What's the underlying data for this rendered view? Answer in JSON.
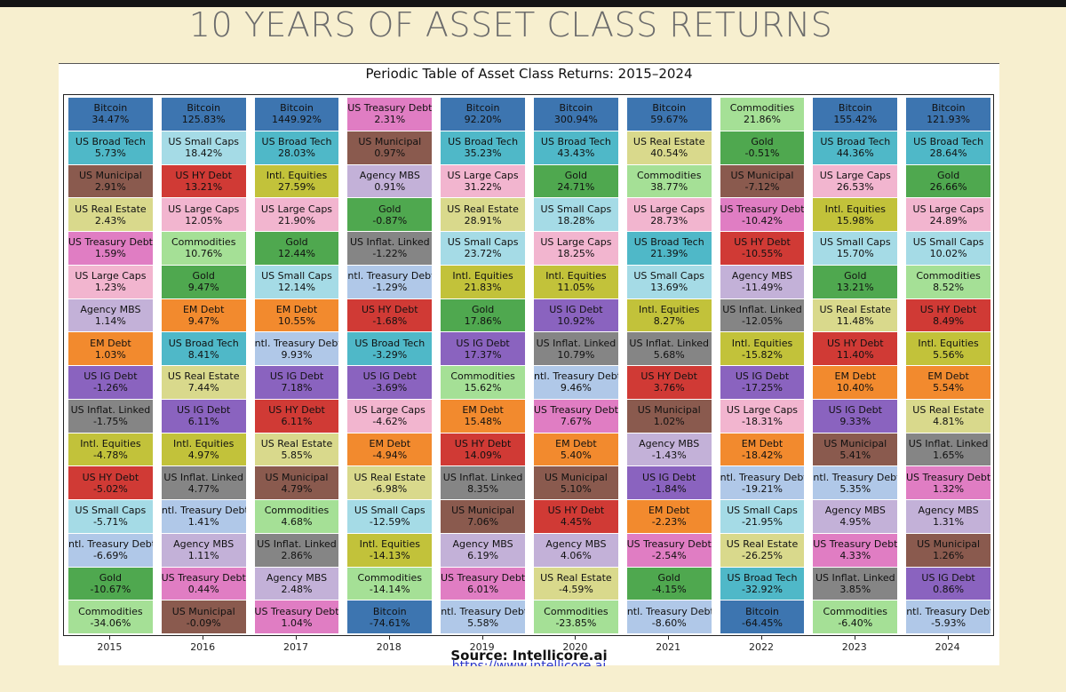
{
  "slide": {
    "title": "10 YEARS OF ASSET CLASS RETURNS",
    "source": "Source: Intellicore.ai",
    "source_url": "https://www.intellicore.ai"
  },
  "colors": {
    "Bitcoin": "#3d75b0",
    "US Broad Tech": "#4fb8c8",
    "US Municipal": "#8a5a4e",
    "US Real Estate": "#d9d98c",
    "US Treasury Debt": "#e07dc3",
    "US Large Caps": "#f2b5cf",
    "Agency MBS": "#c3b1d8",
    "EM Debt": "#f28a2e",
    "US IG Debt": "#8a63bf",
    "US Inflat. Linked": "#858585",
    "Intl. Equities": "#c2c23a",
    "US HY Debt": "#d03a35",
    "US Small Caps": "#a5dbe6",
    "Intl. Treasury Debt": "#b0c8e8",
    "Gold": "#4fa84f",
    "Commodities": "#a5e096"
  },
  "chart_data": {
    "type": "table",
    "title": "Periodic Table of Asset Class Returns: 2015–2024",
    "x_labels": [
      "2015",
      "2016",
      "2017",
      "2018",
      "2019",
      "2020",
      "2021",
      "2022",
      "2023",
      "2024"
    ],
    "columns": [
      {
        "year": "2015",
        "cells": [
          {
            "asset": "Bitcoin",
            "value": "34.47%"
          },
          {
            "asset": "US Broad Tech",
            "value": "5.73%"
          },
          {
            "asset": "US Municipal",
            "value": "2.91%"
          },
          {
            "asset": "US Real Estate",
            "value": "2.43%"
          },
          {
            "asset": "US Treasury Debt",
            "value": "1.59%"
          },
          {
            "asset": "US Large Caps",
            "value": "1.23%"
          },
          {
            "asset": "Agency MBS",
            "value": "1.14%"
          },
          {
            "asset": "EM Debt",
            "value": "1.03%"
          },
          {
            "asset": "US IG Debt",
            "value": "-1.26%"
          },
          {
            "asset": "US Inflat. Linked",
            "value": "-1.75%"
          },
          {
            "asset": "Intl. Equities",
            "value": "-4.78%"
          },
          {
            "asset": "US HY Debt",
            "value": "-5.02%"
          },
          {
            "asset": "US Small Caps",
            "value": "-5.71%"
          },
          {
            "asset": "Intl. Treasury Debt",
            "value": "-6.69%"
          },
          {
            "asset": "Gold",
            "value": "-10.67%"
          },
          {
            "asset": "Commodities",
            "value": "-34.06%"
          }
        ]
      },
      {
        "year": "2016",
        "cells": [
          {
            "asset": "Bitcoin",
            "value": "125.83%"
          },
          {
            "asset": "US Small Caps",
            "value": "18.42%"
          },
          {
            "asset": "US HY Debt",
            "value": "13.21%"
          },
          {
            "asset": "US Large Caps",
            "value": "12.05%"
          },
          {
            "asset": "Commodities",
            "value": "10.76%"
          },
          {
            "asset": "Gold",
            "value": "9.47%"
          },
          {
            "asset": "EM Debt",
            "value": "9.47%"
          },
          {
            "asset": "US Broad Tech",
            "value": "8.41%"
          },
          {
            "asset": "US Real Estate",
            "value": "7.44%"
          },
          {
            "asset": "US IG Debt",
            "value": "6.11%"
          },
          {
            "asset": "Intl. Equities",
            "value": "4.97%"
          },
          {
            "asset": "US Inflat. Linked",
            "value": "4.77%"
          },
          {
            "asset": "Intl. Treasury Debt",
            "value": "1.41%"
          },
          {
            "asset": "Agency MBS",
            "value": "1.11%"
          },
          {
            "asset": "US Treasury Debt",
            "value": "0.44%"
          },
          {
            "asset": "US Municipal",
            "value": "-0.09%"
          }
        ]
      },
      {
        "year": "2017",
        "cells": [
          {
            "asset": "Bitcoin",
            "value": "1449.92%"
          },
          {
            "asset": "US Broad Tech",
            "value": "28.03%"
          },
          {
            "asset": "Intl. Equities",
            "value": "27.59%"
          },
          {
            "asset": "US Large Caps",
            "value": "21.90%"
          },
          {
            "asset": "Gold",
            "value": "12.44%"
          },
          {
            "asset": "US Small Caps",
            "value": "12.14%"
          },
          {
            "asset": "EM Debt",
            "value": "10.55%"
          },
          {
            "asset": "Intl. Treasury Debt",
            "value": "9.93%"
          },
          {
            "asset": "US IG Debt",
            "value": "7.18%"
          },
          {
            "asset": "US HY Debt",
            "value": "6.11%"
          },
          {
            "asset": "US Real Estate",
            "value": "5.85%"
          },
          {
            "asset": "US Municipal",
            "value": "4.79%"
          },
          {
            "asset": "Commodities",
            "value": "4.68%"
          },
          {
            "asset": "US Inflat. Linked",
            "value": "2.86%"
          },
          {
            "asset": "Agency MBS",
            "value": "2.48%"
          },
          {
            "asset": "US Treasury Debt",
            "value": "1.04%"
          }
        ]
      },
      {
        "year": "2018",
        "cells": [
          {
            "asset": "US Treasury Debt",
            "value": "2.31%"
          },
          {
            "asset": "US Municipal",
            "value": "0.97%"
          },
          {
            "asset": "Agency MBS",
            "value": "0.91%"
          },
          {
            "asset": "Gold",
            "value": "-0.87%"
          },
          {
            "asset": "US Inflat. Linked",
            "value": "-1.22%"
          },
          {
            "asset": "Intl. Treasury Debt",
            "value": "-1.29%"
          },
          {
            "asset": "US HY Debt",
            "value": "-1.68%"
          },
          {
            "asset": "US Broad Tech",
            "value": "-3.29%"
          },
          {
            "asset": "US IG Debt",
            "value": "-3.69%"
          },
          {
            "asset": "US Large Caps",
            "value": "-4.62%"
          },
          {
            "asset": "EM Debt",
            "value": "-4.94%"
          },
          {
            "asset": "US Real Estate",
            "value": "-6.98%"
          },
          {
            "asset": "US Small Caps",
            "value": "-12.59%"
          },
          {
            "asset": "Intl. Equities",
            "value": "-14.13%"
          },
          {
            "asset": "Commodities",
            "value": "-14.14%"
          },
          {
            "asset": "Bitcoin",
            "value": "-74.61%"
          }
        ]
      },
      {
        "year": "2019",
        "cells": [
          {
            "asset": "Bitcoin",
            "value": "92.20%"
          },
          {
            "asset": "US Broad Tech",
            "value": "35.23%"
          },
          {
            "asset": "US Large Caps",
            "value": "31.22%"
          },
          {
            "asset": "US Real Estate",
            "value": "28.91%"
          },
          {
            "asset": "US Small Caps",
            "value": "23.72%"
          },
          {
            "asset": "Intl. Equities",
            "value": "21.83%"
          },
          {
            "asset": "Gold",
            "value": "17.86%"
          },
          {
            "asset": "US IG Debt",
            "value": "17.37%"
          },
          {
            "asset": "Commodities",
            "value": "15.62%"
          },
          {
            "asset": "EM Debt",
            "value": "15.48%"
          },
          {
            "asset": "US HY Debt",
            "value": "14.09%"
          },
          {
            "asset": "US Inflat. Linked",
            "value": "8.35%"
          },
          {
            "asset": "US Municipal",
            "value": "7.06%"
          },
          {
            "asset": "Agency MBS",
            "value": "6.19%"
          },
          {
            "asset": "US Treasury Debt",
            "value": "6.01%"
          },
          {
            "asset": "Intl. Treasury Debt",
            "value": "5.58%"
          }
        ]
      },
      {
        "year": "2020",
        "cells": [
          {
            "asset": "Bitcoin",
            "value": "300.94%"
          },
          {
            "asset": "US Broad Tech",
            "value": "43.43%"
          },
          {
            "asset": "Gold",
            "value": "24.71%"
          },
          {
            "asset": "US Small Caps",
            "value": "18.28%"
          },
          {
            "asset": "US Large Caps",
            "value": "18.25%"
          },
          {
            "asset": "Intl. Equities",
            "value": "11.05%"
          },
          {
            "asset": "US IG Debt",
            "value": "10.92%"
          },
          {
            "asset": "US Inflat. Linked",
            "value": "10.79%"
          },
          {
            "asset": "Intl. Treasury Debt",
            "value": "9.46%"
          },
          {
            "asset": "US Treasury Debt",
            "value": "7.67%"
          },
          {
            "asset": "EM Debt",
            "value": "5.40%"
          },
          {
            "asset": "US Municipal",
            "value": "5.10%"
          },
          {
            "asset": "US HY Debt",
            "value": "4.45%"
          },
          {
            "asset": "Agency MBS",
            "value": "4.06%"
          },
          {
            "asset": "US Real Estate",
            "value": "-4.59%"
          },
          {
            "asset": "Commodities",
            "value": "-23.85%"
          }
        ]
      },
      {
        "year": "2021",
        "cells": [
          {
            "asset": "Bitcoin",
            "value": "59.67%"
          },
          {
            "asset": "US Real Estate",
            "value": "40.54%"
          },
          {
            "asset": "Commodities",
            "value": "38.77%"
          },
          {
            "asset": "US Large Caps",
            "value": "28.73%"
          },
          {
            "asset": "US Broad Tech",
            "value": "21.39%"
          },
          {
            "asset": "US Small Caps",
            "value": "13.69%"
          },
          {
            "asset": "Intl. Equities",
            "value": "8.27%"
          },
          {
            "asset": "US Inflat. Linked",
            "value": "5.68%"
          },
          {
            "asset": "US HY Debt",
            "value": "3.76%"
          },
          {
            "asset": "US Municipal",
            "value": "1.02%"
          },
          {
            "asset": "Agency MBS",
            "value": "-1.43%"
          },
          {
            "asset": "US IG Debt",
            "value": "-1.84%"
          },
          {
            "asset": "EM Debt",
            "value": "-2.23%"
          },
          {
            "asset": "US Treasury Debt",
            "value": "-2.54%"
          },
          {
            "asset": "Gold",
            "value": "-4.15%"
          },
          {
            "asset": "Intl. Treasury Debt",
            "value": "-8.60%"
          }
        ]
      },
      {
        "year": "2022",
        "cells": [
          {
            "asset": "Commodities",
            "value": "21.86%"
          },
          {
            "asset": "Gold",
            "value": "-0.51%"
          },
          {
            "asset": "US Municipal",
            "value": "-7.12%"
          },
          {
            "asset": "US Treasury Debt",
            "value": "-10.42%"
          },
          {
            "asset": "US HY Debt",
            "value": "-10.55%"
          },
          {
            "asset": "Agency MBS",
            "value": "-11.49%"
          },
          {
            "asset": "US Inflat. Linked",
            "value": "-12.05%"
          },
          {
            "asset": "Intl. Equities",
            "value": "-15.82%"
          },
          {
            "asset": "US IG Debt",
            "value": "-17.25%"
          },
          {
            "asset": "US Large Caps",
            "value": "-18.31%"
          },
          {
            "asset": "EM Debt",
            "value": "-18.42%"
          },
          {
            "asset": "Intl. Treasury Debt",
            "value": "-19.21%"
          },
          {
            "asset": "US Small Caps",
            "value": "-21.95%"
          },
          {
            "asset": "US Real Estate",
            "value": "-26.25%"
          },
          {
            "asset": "US Broad Tech",
            "value": "-32.92%"
          },
          {
            "asset": "Bitcoin",
            "value": "-64.45%"
          }
        ]
      },
      {
        "year": "2023",
        "cells": [
          {
            "asset": "Bitcoin",
            "value": "155.42%"
          },
          {
            "asset": "US Broad Tech",
            "value": "44.36%"
          },
          {
            "asset": "US Large Caps",
            "value": "26.53%"
          },
          {
            "asset": "Intl. Equities",
            "value": "15.98%"
          },
          {
            "asset": "US Small Caps",
            "value": "15.70%"
          },
          {
            "asset": "Gold",
            "value": "13.21%"
          },
          {
            "asset": "US Real Estate",
            "value": "11.48%"
          },
          {
            "asset": "US HY Debt",
            "value": "11.40%"
          },
          {
            "asset": "EM Debt",
            "value": "10.40%"
          },
          {
            "asset": "US IG Debt",
            "value": "9.33%"
          },
          {
            "asset": "US Municipal",
            "value": "5.41%"
          },
          {
            "asset": "Intl. Treasury Debt",
            "value": "5.35%"
          },
          {
            "asset": "Agency MBS",
            "value": "4.95%"
          },
          {
            "asset": "US Treasury Debt",
            "value": "4.33%"
          },
          {
            "asset": "US Inflat. Linked",
            "value": "3.85%"
          },
          {
            "asset": "Commodities",
            "value": "-6.40%"
          }
        ]
      },
      {
        "year": "2024",
        "cells": [
          {
            "asset": "Bitcoin",
            "value": "121.93%"
          },
          {
            "asset": "US Broad Tech",
            "value": "28.64%"
          },
          {
            "asset": "Gold",
            "value": "26.66%"
          },
          {
            "asset": "US Large Caps",
            "value": "24.89%"
          },
          {
            "asset": "US Small Caps",
            "value": "10.02%"
          },
          {
            "asset": "Commodities",
            "value": "8.52%"
          },
          {
            "asset": "US HY Debt",
            "value": "8.49%"
          },
          {
            "asset": "Intl. Equities",
            "value": "5.56%"
          },
          {
            "asset": "EM Debt",
            "value": "5.54%"
          },
          {
            "asset": "US Real Estate",
            "value": "4.81%"
          },
          {
            "asset": "US Inflat. Linked",
            "value": "1.65%"
          },
          {
            "asset": "US Treasury Debt",
            "value": "1.32%"
          },
          {
            "asset": "Agency MBS",
            "value": "1.31%"
          },
          {
            "asset": "US Municipal",
            "value": "1.26%"
          },
          {
            "asset": "US IG Debt",
            "value": "0.86%"
          },
          {
            "asset": "Intl. Treasury Debt",
            "value": "-5.93%"
          }
        ]
      }
    ],
    "grid": false,
    "legend": "none"
  }
}
